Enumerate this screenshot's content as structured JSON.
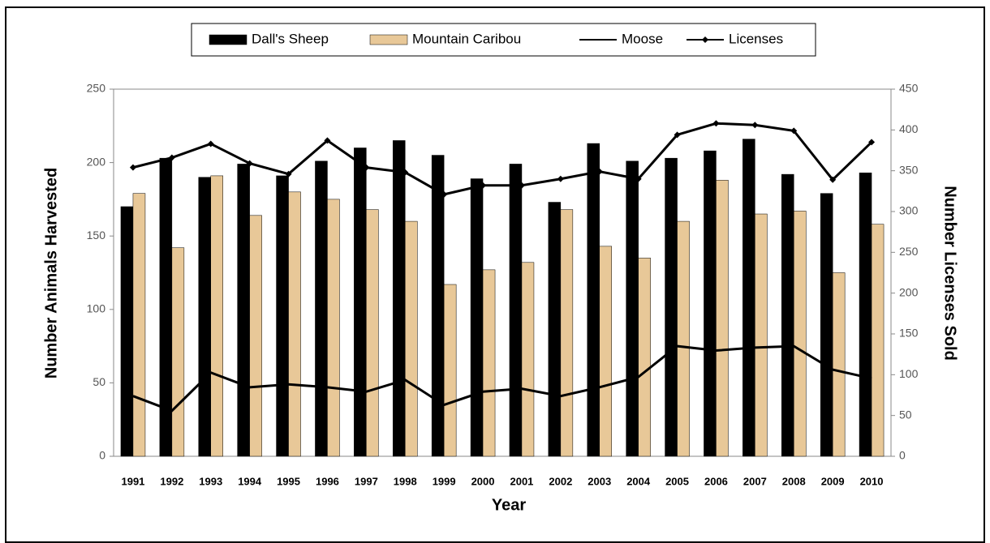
{
  "chart_data": {
    "type": "bar",
    "x_label": "Year",
    "y_label": "Number Animals Harvested",
    "y2_label": "Number Licenses Sold",
    "categories": [
      "1991",
      "1992",
      "1993",
      "1994",
      "1995",
      "1996",
      "1997",
      "1998",
      "1999",
      "2000",
      "2001",
      "2002",
      "2003",
      "2004",
      "2005",
      "2006",
      "2007",
      "2008",
      "2009",
      "2010"
    ],
    "series": [
      {
        "name": "Dall's Sheep",
        "type": "bar",
        "color": "#000000",
        "values": [
          170,
          203,
          190,
          199,
          191,
          201,
          210,
          215,
          205,
          189,
          199,
          173,
          213,
          201,
          203,
          208,
          216,
          192,
          179,
          193
        ]
      },
      {
        "name": "Mountain Caribou",
        "type": "bar",
        "color": "#e8c898",
        "values": [
          179,
          142,
          191,
          164,
          180,
          175,
          168,
          160,
          117,
          127,
          132,
          168,
          143,
          135,
          160,
          188,
          165,
          167,
          125,
          158
        ]
      },
      {
        "name": "Moose",
        "type": "line",
        "color": "#000000",
        "values": [
          41,
          31,
          57,
          47,
          49,
          47,
          44,
          52,
          35,
          44,
          46,
          41,
          47,
          54,
          75,
          72,
          74,
          75,
          59,
          53
        ]
      },
      {
        "name": "Licenses",
        "type": "line",
        "color": "#000000",
        "marker": "diamond",
        "axis": "y2",
        "values": [
          354,
          366,
          383,
          359,
          346,
          387,
          354,
          348,
          321,
          332,
          332,
          340,
          349,
          340,
          394,
          408,
          406,
          399,
          339,
          385
        ]
      }
    ],
    "ylim": [
      0,
      250
    ],
    "yticks": [
      0,
      50,
      100,
      150,
      200,
      250
    ],
    "y2lim": [
      0,
      450
    ],
    "y2ticks": [
      0,
      50,
      100,
      150,
      200,
      250,
      300,
      350,
      400,
      450
    ],
    "legend": "top"
  }
}
